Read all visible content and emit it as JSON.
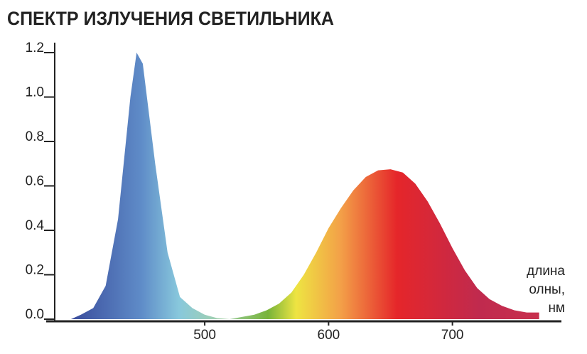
{
  "chart_data": {
    "type": "area",
    "title": "СПЕКТР ИЗЛУЧЕНИЯ СВЕТИЛЬНИКА",
    "x_label": [
      "длина",
      "олны,",
      "нм"
    ],
    "x": [
      392,
      400,
      410,
      420,
      430,
      440,
      445,
      450,
      460,
      470,
      480,
      490,
      500,
      510,
      520,
      530,
      540,
      550,
      560,
      570,
      580,
      590,
      600,
      610,
      620,
      630,
      640,
      650,
      660,
      670,
      680,
      690,
      700,
      710,
      720,
      730,
      740,
      750,
      760,
      770
    ],
    "values": [
      0.0,
      0.02,
      0.05,
      0.15,
      0.45,
      1.0,
      1.2,
      1.15,
      0.7,
      0.3,
      0.1,
      0.05,
      0.02,
      0.005,
      0.0,
      0.01,
      0.02,
      0.04,
      0.07,
      0.12,
      0.2,
      0.3,
      0.41,
      0.5,
      0.58,
      0.64,
      0.67,
      0.675,
      0.66,
      0.61,
      0.53,
      0.43,
      0.32,
      0.22,
      0.14,
      0.09,
      0.06,
      0.04,
      0.03,
      0.03
    ],
    "xlim": [
      372,
      788
    ],
    "ylim": [
      0,
      1.25
    ],
    "xticks": [
      500,
      600,
      700
    ],
    "yticks": [
      {
        "value": 0,
        "label": "0.0"
      },
      0.2,
      0.4,
      0.6,
      0.8,
      {
        "value": 1,
        "label": "1.0"
      },
      1.2
    ]
  }
}
